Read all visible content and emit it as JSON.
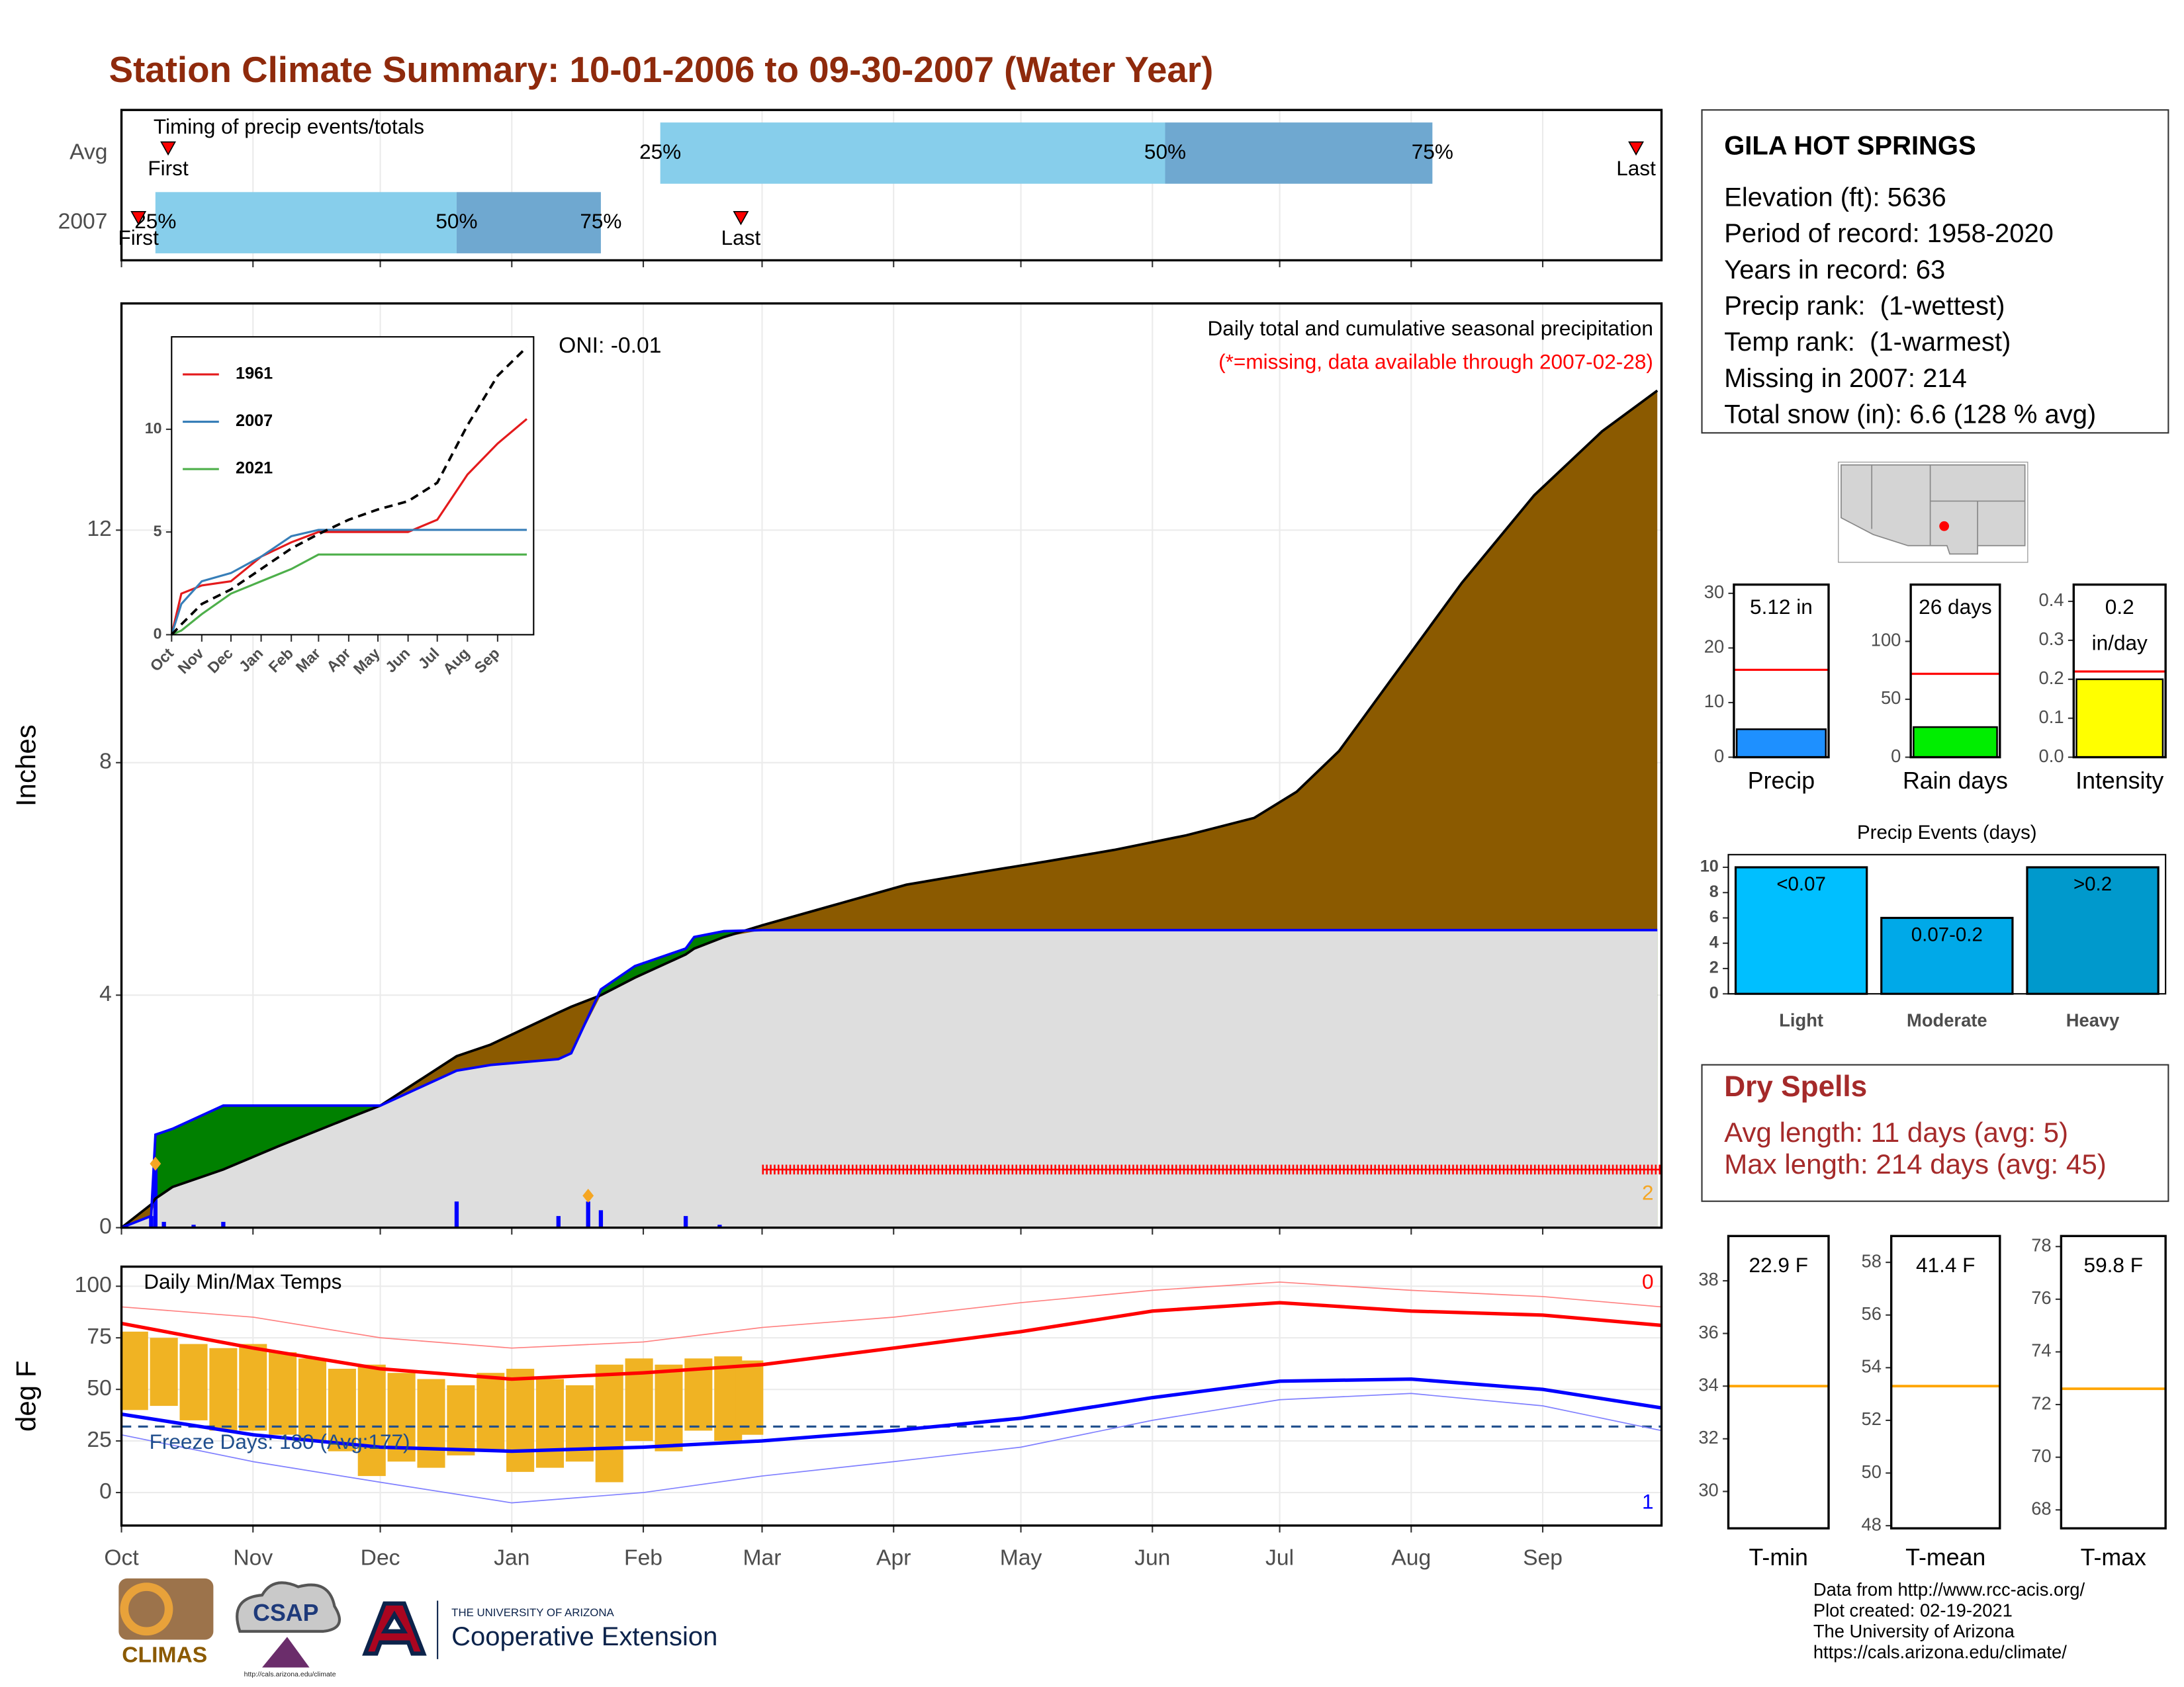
{
  "title": "Station Climate Summary: 10-01-2006 to 09-30-2007 (Water Year)",
  "chart_data": [
    {
      "type": "timeline",
      "title": "Timing of precip events/totals",
      "categories": [
        "Avg",
        "2007"
      ],
      "point_labels": [
        "First",
        "25%",
        "50%",
        "75%",
        "Last"
      ],
      "values": [
        [
          11,
          127,
          246,
          309,
          357
        ],
        [
          4,
          8,
          79,
          113,
          146
        ]
      ],
      "colors": [
        "#87ceeb",
        "#6fa8d0",
        "#ff0000"
      ],
      "xlim": [
        0,
        363
      ],
      "xticks": [
        0,
        31,
        61,
        92,
        123,
        151,
        182,
        212,
        243,
        273,
        304,
        335
      ],
      "grid": true
    },
    {
      "type": "area",
      "title": "Daily total and cumulative seasonal precipitation",
      "subtitle": "(*=missing, data available through 2007-02-28)",
      "annotation": "ONI: -0.01",
      "corner_label": "2",
      "ylabel": "Inches",
      "x": [
        0,
        7,
        8,
        12,
        24,
        37,
        54,
        61,
        79,
        87,
        103,
        106,
        113,
        121,
        133,
        135,
        142,
        151,
        168,
        185,
        201,
        218,
        234,
        251,
        267,
        277,
        287,
        300,
        316,
        333,
        349,
        362
      ],
      "series": [
        {
          "color": "#8b5a00",
          "line": "#000000",
          "values": [
            0,
            0.4,
            0.5,
            0.7,
            1.0,
            1.4,
            1.9,
            2.1,
            2.95,
            3.15,
            3.7,
            3.8,
            4.0,
            4.3,
            4.7,
            4.8,
            5.0,
            5.2,
            5.55,
            5.9,
            6.1,
            6.3,
            6.5,
            6.75,
            7.05,
            7.5,
            8.2,
            9.5,
            11.1,
            12.6,
            13.7,
            14.4
          ]
        },
        {
          "color": "#008000",
          "line": "#0000ff",
          "values": [
            0,
            0.2,
            1.6,
            1.7,
            2.1,
            2.1,
            2.1,
            2.1,
            2.7,
            2.8,
            2.9,
            3.0,
            4.1,
            4.5,
            4.8,
            5.0,
            5.1,
            5.12,
            5.12,
            5.12,
            5.12,
            5.12,
            5.12,
            5.12,
            5.12,
            5.12,
            5.12,
            5.12,
            5.12,
            5.12,
            5.12,
            5.12
          ]
        }
      ],
      "below_color": "#dedede",
      "daily": {
        "color": "#0000ff",
        "x": [
          7,
          8,
          10,
          17,
          24,
          79,
          103,
          110,
          113,
          133,
          141
        ],
        "values": [
          0.2,
          1.1,
          0.1,
          0.05,
          0.1,
          0.45,
          0.2,
          0.45,
          0.3,
          0.2,
          0.05
        ]
      },
      "snow": {
        "color": "#f5a623",
        "x": [
          8,
          110
        ],
        "values": [
          1.1,
          0.55
        ]
      },
      "missing": {
        "color": "#ff0000",
        "x": [
          151,
          363
        ],
        "value": 1
      },
      "xlim": [
        0,
        363
      ],
      "xticks": [
        0,
        31,
        61,
        92,
        123,
        151,
        182,
        212,
        243,
        273,
        304,
        335
      ],
      "ylim": [
        0,
        15.9
      ],
      "yticks": [
        0,
        4,
        8,
        12
      ],
      "grid": true
    },
    {
      "type": "line",
      "x": [
        0,
        10,
        31,
        61,
        92,
        123,
        151,
        182,
        212,
        243,
        273,
        304,
        335,
        365
      ],
      "series": [
        {
          "name": "1961",
          "color": "#e41a1c",
          "values": [
            0,
            2.0,
            2.4,
            2.6,
            3.8,
            4.5,
            5.0,
            5.0,
            5.0,
            5.0,
            5.6,
            7.8,
            9.3,
            10.5
          ]
        },
        {
          "name": "2007",
          "color": "#377eb8",
          "values": [
            0,
            1.5,
            2.6,
            3.0,
            3.8,
            4.8,
            5.1,
            5.1,
            5.1,
            5.1,
            5.1,
            5.1,
            5.1,
            5.1
          ]
        },
        {
          "name": "2021",
          "color": "#4daf4a",
          "values": [
            0,
            0.2,
            1.0,
            2.0,
            2.6,
            3.2,
            3.9,
            3.9,
            3.9,
            3.9,
            3.9,
            3.9,
            3.9,
            3.9
          ]
        },
        {
          "color": "#000000",
          "dash": true,
          "values": [
            0,
            0.5,
            1.5,
            2.2,
            3.2,
            4.2,
            4.9,
            5.6,
            6.1,
            6.5,
            7.4,
            10.2,
            12.6,
            14.0
          ]
        }
      ],
      "xlim": [
        0,
        372
      ],
      "xticks": [
        {
          "value": 0,
          "label": "Oct"
        },
        {
          "value": 31,
          "label": "Nov"
        },
        {
          "value": 61,
          "label": "Dec"
        },
        {
          "value": 92,
          "label": "Jan"
        },
        {
          "value": 123,
          "label": "Feb"
        },
        {
          "value": 151,
          "label": "Mar"
        },
        {
          "value": 182,
          "label": "Apr"
        },
        {
          "value": 212,
          "label": "May"
        },
        {
          "value": 243,
          "label": "Jun"
        },
        {
          "value": 273,
          "label": "Jul"
        },
        {
          "value": 304,
          "label": "Aug"
        },
        {
          "value": 335,
          "label": "Sep"
        }
      ],
      "ylim": [
        0,
        14.5
      ],
      "yticks": [
        0,
        5,
        10
      ],
      "legend": "top-left"
    },
    {
      "type": "temperature",
      "title": "Daily Min/Max Temps",
      "ylabel": "deg F",
      "annotation": "Freeze Days: 180 (Avg:177)",
      "high_label": "0",
      "low_label": "1",
      "x": [
        0,
        31,
        61,
        92,
        123,
        151,
        182,
        212,
        243,
        273,
        304,
        335,
        363
      ],
      "series": [
        {
          "color": "#ff8080",
          "width": 0.8,
          "values": [
            90,
            85,
            75,
            70,
            73,
            80,
            85,
            92,
            98,
            102,
            98,
            95,
            90
          ]
        },
        {
          "color": "#8080ff",
          "width": 0.8,
          "values": [
            28,
            15,
            5,
            -5,
            0,
            8,
            15,
            22,
            35,
            45,
            48,
            42,
            30
          ]
        },
        {
          "color": "#ff0000",
          "width": 2.5,
          "values": [
            82,
            70,
            60,
            55,
            58,
            62,
            70,
            78,
            88,
            92,
            88,
            86,
            81
          ]
        },
        {
          "color": "#0000ff",
          "width": 2.5,
          "values": [
            38,
            28,
            22,
            20,
            22,
            25,
            30,
            36,
            46,
            54,
            55,
            50,
            41
          ]
        }
      ],
      "bars": {
        "color": "#f0b323",
        "x": [
          3,
          10,
          17,
          24,
          31,
          38,
          45,
          52,
          59,
          66,
          73,
          80,
          87,
          94,
          101,
          108,
          115,
          122,
          129,
          136,
          143,
          148
        ],
        "low": [
          40,
          42,
          35,
          30,
          30,
          28,
          25,
          20,
          8,
          15,
          12,
          18,
          20,
          10,
          12,
          15,
          5,
          25,
          20,
          30,
          25,
          28
        ],
        "high": [
          78,
          75,
          72,
          70,
          72,
          68,
          65,
          60,
          62,
          58,
          55,
          52,
          58,
          60,
          55,
          52,
          62,
          65,
          62,
          65,
          66,
          64
        ]
      },
      "freeze_line": 32,
      "xlim": [
        0,
        363
      ],
      "xticks": [
        {
          "value": 0,
          "label": "Oct"
        },
        {
          "value": 31,
          "label": "Nov"
        },
        {
          "value": 61,
          "label": "Dec"
        },
        {
          "value": 92,
          "label": "Jan"
        },
        {
          "value": 123,
          "label": "Feb"
        },
        {
          "value": 151,
          "label": "Mar"
        },
        {
          "value": 182,
          "label": "Apr"
        },
        {
          "value": 212,
          "label": "May"
        },
        {
          "value": 243,
          "label": "Jun"
        },
        {
          "value": 273,
          "label": "Jul"
        },
        {
          "value": 304,
          "label": "Aug"
        },
        {
          "value": 335,
          "label": "Sep"
        }
      ],
      "ylim": [
        -16,
        109.5
      ],
      "yticks": [
        0,
        25,
        50,
        75,
        100
      ],
      "grid": true
    },
    {
      "type": "bar",
      "xlabel": "Precip",
      "value": 5.12,
      "value_label": "5.12 in",
      "avg": 16,
      "color": "#1e90ff",
      "avg_color": "#ff0000",
      "ylim": [
        0,
        31.6
      ],
      "yticks": [
        0,
        10,
        20,
        30
      ]
    },
    {
      "type": "bar",
      "xlabel": "Rain days",
      "value": 26,
      "value_label": "26 days",
      "avg": 72,
      "color": "#00ee00",
      "avg_color": "#ff0000",
      "ylim": [
        0,
        149
      ],
      "yticks": [
        0,
        50,
        100
      ]
    },
    {
      "type": "bar",
      "xlabel": "Intensity",
      "value": 0.2,
      "value_label": "0.2 in/day",
      "avg": 0.22,
      "color": "#ffff00",
      "avg_color": "#ff0000",
      "ylim": [
        0,
        0.443
      ],
      "yticks": [
        {
          "value": 0,
          "label": "0.0"
        },
        0.1,
        0.2,
        0.3,
        0.4
      ]
    },
    {
      "type": "bar",
      "title": "Precip Events (days)",
      "categories": [
        "Light",
        "Moderate",
        "Heavy"
      ],
      "values": [
        10,
        6,
        10
      ],
      "bin_labels": [
        "<0.07",
        "0.07-0.2",
        ">0.2"
      ],
      "colors": [
        "#00bfff",
        "#00a9e8",
        "#0099cc"
      ],
      "ylim": [
        0,
        11
      ],
      "yticks": [
        0,
        2,
        4,
        6,
        8,
        10
      ]
    },
    {
      "type": "reference",
      "xlabel": "T-min",
      "value": 22.9,
      "value_label": "22.9 F",
      "avg": 34,
      "color": "#ffa500",
      "ylim": [
        28.6,
        39.7
      ],
      "yticks": [
        30,
        32,
        34,
        36,
        38
      ]
    },
    {
      "type": "reference",
      "xlabel": "T-mean",
      "value": 41.4,
      "value_label": "41.4 F",
      "avg": 53.3,
      "color": "#ffa500",
      "ylim": [
        47.9,
        59
      ],
      "yticks": [
        48,
        50,
        52,
        54,
        56,
        58
      ]
    },
    {
      "type": "reference",
      "xlabel": "T-max",
      "value": 59.8,
      "value_label": "59.8 F",
      "avg": 72.6,
      "color": "#ffa500",
      "ylim": [
        67.3,
        78.4
      ],
      "yticks": [
        68,
        70,
        72,
        74,
        76,
        78
      ]
    }
  ],
  "station": {
    "name": "GILA HOT SPRINGS",
    "lines": [
      "Elevation (ft): 5636",
      "Period of record: 1958-2020",
      "Years in record: 63",
      "Precip rank:  (1-wettest)",
      "Temp rank:  (1-warmest)",
      "Missing in 2007: 214",
      "Total snow (in): 6.6 (128 % avg)"
    ]
  },
  "dry_spells": {
    "title": "Dry Spells",
    "lines": [
      "Avg length: 11 days (avg: 5)",
      "Max length: 214 days (avg: 45)"
    ]
  },
  "footer": [
    "Data from http://www.rcc-acis.org/",
    "Plot created: 02-19-2021",
    "The University of Arizona",
    "https://cals.arizona.edu/climate/"
  ],
  "logos": {
    "climas": "CLIMAS",
    "csap": "CSAP",
    "csap_url": "http://cals.arizona.edu/climate",
    "ua": "THE UNIVERSITY OF ARIZONA",
    "coop": "Cooperative Extension"
  }
}
